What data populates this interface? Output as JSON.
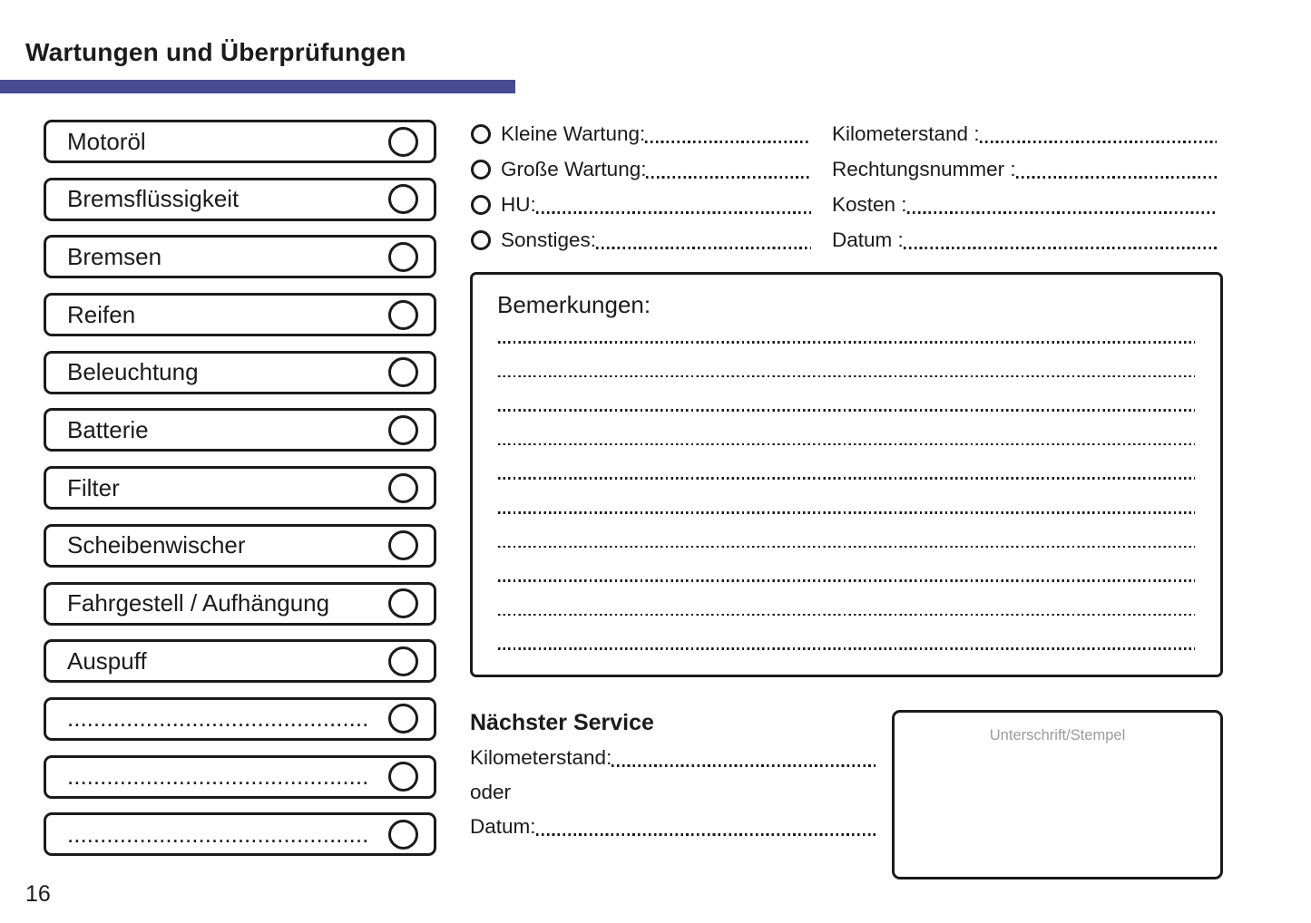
{
  "header": {
    "title": "Wartungen und Überprüfungen",
    "page_number": "16",
    "accent_color": "#484b92"
  },
  "checklist": {
    "items": [
      {
        "label": "Motoröl"
      },
      {
        "label": "Bremsflüssigkeit"
      },
      {
        "label": "Bremsen"
      },
      {
        "label": "Reifen"
      },
      {
        "label": "Beleuchtung"
      },
      {
        "label": "Batterie"
      },
      {
        "label": "Filter"
      },
      {
        "label": "Scheibenwischer"
      },
      {
        "label": "Fahrgestell / Aufhängung"
      },
      {
        "label": "Auspuff"
      },
      {
        "label": ".............................................."
      },
      {
        "label": ".............................................."
      },
      {
        "label": ".............................................."
      }
    ]
  },
  "service_type": {
    "options": [
      {
        "label": "Kleine Wartung:"
      },
      {
        "label": "Große Wartung:"
      },
      {
        "label": "HU:"
      },
      {
        "label": "Sonstiges:"
      }
    ]
  },
  "service_details": {
    "fields": [
      {
        "label": "Kilometerstand :"
      },
      {
        "label": "Rechtungsnummer :"
      },
      {
        "label": "Kosten :"
      },
      {
        "label": "Datum :"
      }
    ]
  },
  "remarks": {
    "title": "Bemerkungen:",
    "line_count": 10
  },
  "next_service": {
    "title": "Nächster Service",
    "fields": [
      {
        "label": "Kilometerstand:"
      },
      {
        "label": "oder"
      },
      {
        "label": "Datum:"
      }
    ]
  },
  "signature": {
    "label": "Unterschrift/Stempel"
  },
  "colors": {
    "text": "#1b1b1b",
    "accent_bar": "#484b92",
    "signature_label": "#9b9b9b"
  }
}
